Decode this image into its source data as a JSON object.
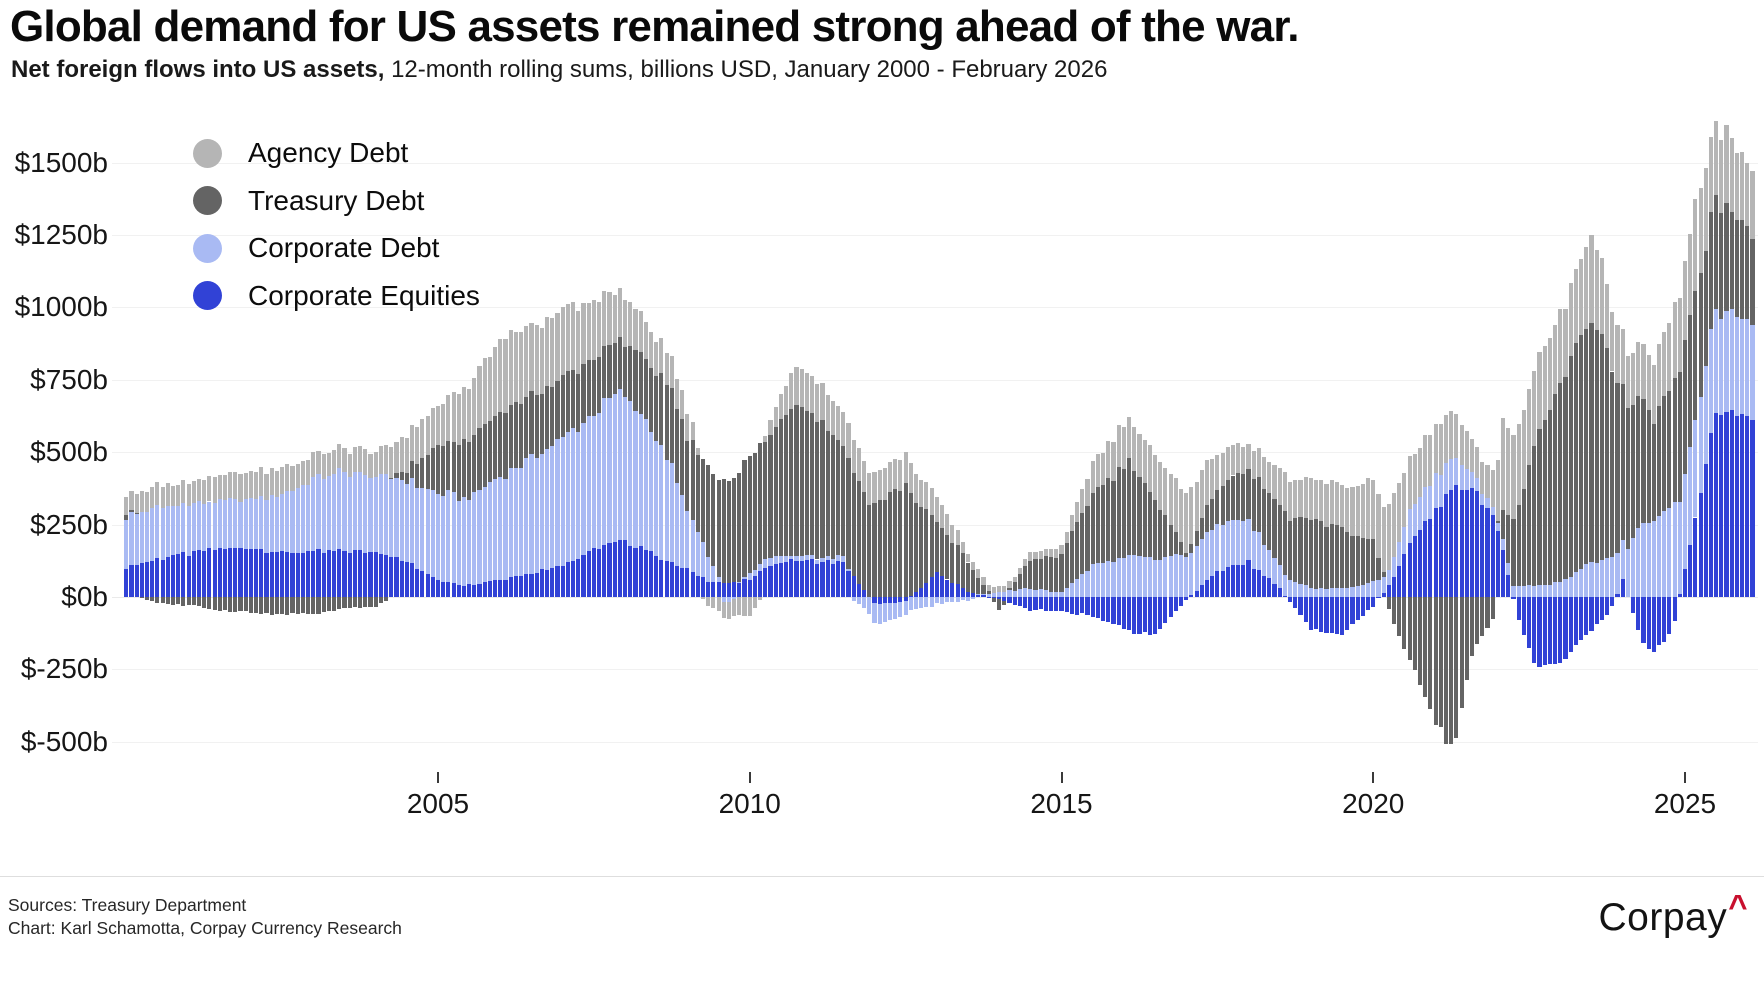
{
  "title": "Global demand for US assets remained strong ahead of the war.",
  "subtitle": {
    "bold": "Net foreign flows into US assets,",
    "rest": " 12-month rolling sums, billions USD, January 2000 - February 2026"
  },
  "legend": [
    {
      "label": "Agency Debt",
      "color": "#b5b5b5"
    },
    {
      "label": "Treasury Debt",
      "color": "#646464"
    },
    {
      "label": "Corporate Debt",
      "color": "#a9baf3"
    },
    {
      "label": "Corporate Equities",
      "color": "#3142d6"
    }
  ],
  "y_axis": {
    "ticks": [
      {
        "label": "$1500b",
        "value": 1500
      },
      {
        "label": "$1250b",
        "value": 1250
      },
      {
        "label": "$1000b",
        "value": 1000
      },
      {
        "label": "$750b",
        "value": 750
      },
      {
        "label": "$500b",
        "value": 500
      },
      {
        "label": "$250b",
        "value": 250
      },
      {
        "label": "$0b",
        "value": 0
      },
      {
        "label": "$-250b",
        "value": -250
      },
      {
        "label": "$-500b",
        "value": -500
      }
    ]
  },
  "x_axis": {
    "ticks": [
      {
        "label": "2005",
        "year": 2005
      },
      {
        "label": "2010",
        "year": 2010
      },
      {
        "label": "2015",
        "year": 2015
      },
      {
        "label": "2020",
        "year": 2020
      },
      {
        "label": "2025",
        "year": 2025
      }
    ]
  },
  "footer": {
    "sources": "Sources: Treasury Department",
    "credit": "Chart: Karl Schamotta, Corpay Currency Research"
  },
  "logo": {
    "text": "Corpay",
    "caret": "^"
  },
  "chart_data": {
    "type": "bar",
    "stacked": true,
    "title": "Global demand for US assets remained strong ahead of the war.",
    "unit": "billions USD, 12-month rolling sums",
    "x_range": [
      2000.0,
      2026.083
    ],
    "x_step_months": 1,
    "ylim": [
      -560,
      1650
    ],
    "grid": true,
    "legend_position": "top-left",
    "series": [
      {
        "name": "Corporate Equities",
        "color": "#3142d6",
        "keyframes": [
          [
            2000.0,
            105
          ],
          [
            2000.5,
            130
          ],
          [
            2001.0,
            150
          ],
          [
            2001.5,
            165
          ],
          [
            2002.0,
            170
          ],
          [
            2002.5,
            155
          ],
          [
            2003.0,
            155
          ],
          [
            2003.5,
            160
          ],
          [
            2004.0,
            160
          ],
          [
            2004.5,
            120
          ],
          [
            2005.0,
            60
          ],
          [
            2005.5,
            40
          ],
          [
            2006.0,
            60
          ],
          [
            2006.5,
            85
          ],
          [
            2007.0,
            110
          ],
          [
            2007.5,
            160
          ],
          [
            2007.9,
            195
          ],
          [
            2008.3,
            170
          ],
          [
            2008.7,
            120
          ],
          [
            2009.0,
            95
          ],
          [
            2009.3,
            60
          ],
          [
            2009.6,
            45
          ],
          [
            2010.0,
            60
          ],
          [
            2010.3,
            110
          ],
          [
            2010.7,
            125
          ],
          [
            2011.0,
            125
          ],
          [
            2011.5,
            118
          ],
          [
            2012.0,
            -25
          ],
          [
            2012.5,
            -15
          ],
          [
            2013.0,
            80
          ],
          [
            2013.5,
            22
          ],
          [
            2014.0,
            -10
          ],
          [
            2014.5,
            -45
          ],
          [
            2015.0,
            -50
          ],
          [
            2015.5,
            -65
          ],
          [
            2016.1,
            -120
          ],
          [
            2016.5,
            -130
          ],
          [
            2017.0,
            -10
          ],
          [
            2017.5,
            90
          ],
          [
            2018.0,
            120
          ],
          [
            2018.5,
            30
          ],
          [
            2019.0,
            -110
          ],
          [
            2019.5,
            -130
          ],
          [
            2020.0,
            -30
          ],
          [
            2020.3,
            55
          ],
          [
            2020.6,
            190
          ],
          [
            2021.0,
            300
          ],
          [
            2021.3,
            370
          ],
          [
            2021.6,
            385
          ],
          [
            2021.9,
            280
          ],
          [
            2022.1,
            150
          ],
          [
            2022.3,
            -60
          ],
          [
            2022.6,
            -240
          ],
          [
            2023.0,
            -230
          ],
          [
            2023.3,
            -160
          ],
          [
            2023.5,
            -115
          ],
          [
            2023.8,
            -50
          ],
          [
            2024.0,
            60
          ],
          [
            2024.3,
            -150
          ],
          [
            2024.5,
            -190
          ],
          [
            2024.8,
            -120
          ],
          [
            2025.0,
            100
          ],
          [
            2025.2,
            300
          ],
          [
            2025.5,
            650
          ],
          [
            2025.7,
            620
          ],
          [
            2026.0,
            630
          ],
          [
            2026.083,
            620
          ]
        ]
      },
      {
        "name": "Corporate Debt",
        "color": "#a9baf3",
        "keyframes": [
          [
            2000.0,
            175
          ],
          [
            2000.5,
            180
          ],
          [
            2001.0,
            170
          ],
          [
            2001.5,
            160
          ],
          [
            2002.0,
            170
          ],
          [
            2002.5,
            200
          ],
          [
            2003.0,
            250
          ],
          [
            2003.5,
            270
          ],
          [
            2004.0,
            260
          ],
          [
            2004.5,
            280
          ],
          [
            2005.0,
            300
          ],
          [
            2005.5,
            300
          ],
          [
            2006.0,
            360
          ],
          [
            2006.5,
            400
          ],
          [
            2007.0,
            440
          ],
          [
            2007.5,
            470
          ],
          [
            2007.9,
            510
          ],
          [
            2008.3,
            460
          ],
          [
            2008.7,
            350
          ],
          [
            2009.0,
            205
          ],
          [
            2009.3,
            100
          ],
          [
            2009.6,
            -25
          ],
          [
            2010.0,
            20
          ],
          [
            2010.3,
            30
          ],
          [
            2010.7,
            15
          ],
          [
            2011.0,
            15
          ],
          [
            2011.5,
            20
          ],
          [
            2012.0,
            -70
          ],
          [
            2012.5,
            -50
          ],
          [
            2013.0,
            -25
          ],
          [
            2013.5,
            -10
          ],
          [
            2014.0,
            15
          ],
          [
            2014.5,
            30
          ],
          [
            2015.0,
            15
          ],
          [
            2015.5,
            110
          ],
          [
            2016.1,
            140
          ],
          [
            2016.5,
            130
          ],
          [
            2017.0,
            145
          ],
          [
            2017.5,
            170
          ],
          [
            2018.0,
            145
          ],
          [
            2018.5,
            75
          ],
          [
            2019.0,
            30
          ],
          [
            2019.5,
            30
          ],
          [
            2020.0,
            50
          ],
          [
            2020.3,
            60
          ],
          [
            2020.6,
            115
          ],
          [
            2021.0,
            120
          ],
          [
            2021.3,
            100
          ],
          [
            2021.6,
            55
          ],
          [
            2021.9,
            30
          ],
          [
            2022.1,
            40
          ],
          [
            2022.3,
            40
          ],
          [
            2022.6,
            40
          ],
          [
            2023.0,
            50
          ],
          [
            2023.3,
            90
          ],
          [
            2023.5,
            120
          ],
          [
            2023.8,
            130
          ],
          [
            2024.0,
            140
          ],
          [
            2024.3,
            250
          ],
          [
            2024.5,
            270
          ],
          [
            2024.8,
            320
          ],
          [
            2025.0,
            330
          ],
          [
            2025.2,
            330
          ],
          [
            2025.5,
            350
          ],
          [
            2025.7,
            330
          ],
          [
            2026.0,
            345
          ],
          [
            2026.083,
            340
          ]
        ]
      },
      {
        "name": "Treasury Debt",
        "color": "#646464",
        "keyframes": [
          [
            2000.0,
            15
          ],
          [
            2000.5,
            -20
          ],
          [
            2001.0,
            -30
          ],
          [
            2001.5,
            -45
          ],
          [
            2002.0,
            -55
          ],
          [
            2002.5,
            -60
          ],
          [
            2003.0,
            -60
          ],
          [
            2003.5,
            -40
          ],
          [
            2004.0,
            -35
          ],
          [
            2004.5,
            40
          ],
          [
            2005.0,
            160
          ],
          [
            2005.5,
            200
          ],
          [
            2006.0,
            220
          ],
          [
            2006.5,
            215
          ],
          [
            2007.0,
            205
          ],
          [
            2007.5,
            190
          ],
          [
            2007.9,
            175
          ],
          [
            2008.3,
            210
          ],
          [
            2008.7,
            250
          ],
          [
            2009.0,
            250
          ],
          [
            2009.3,
            300
          ],
          [
            2009.6,
            360
          ],
          [
            2010.0,
            400
          ],
          [
            2010.3,
            410
          ],
          [
            2010.7,
            530
          ],
          [
            2011.0,
            510
          ],
          [
            2011.5,
            385
          ],
          [
            2012.0,
            320
          ],
          [
            2012.5,
            390
          ],
          [
            2013.0,
            175
          ],
          [
            2013.5,
            105
          ],
          [
            2014.0,
            -40
          ],
          [
            2014.5,
            100
          ],
          [
            2015.0,
            130
          ],
          [
            2015.5,
            250
          ],
          [
            2016.1,
            330
          ],
          [
            2016.5,
            200
          ],
          [
            2017.0,
            15
          ],
          [
            2017.5,
            125
          ],
          [
            2018.0,
            175
          ],
          [
            2018.5,
            205
          ],
          [
            2019.0,
            235
          ],
          [
            2019.5,
            205
          ],
          [
            2020.0,
            140
          ],
          [
            2020.3,
            -80
          ],
          [
            2020.6,
            -230
          ],
          [
            2021.0,
            -430
          ],
          [
            2021.3,
            -540
          ],
          [
            2021.6,
            -180
          ],
          [
            2021.9,
            -95
          ],
          [
            2022.1,
            115
          ],
          [
            2022.3,
            260
          ],
          [
            2022.6,
            480
          ],
          [
            2023.0,
            680
          ],
          [
            2023.3,
            780
          ],
          [
            2023.5,
            850
          ],
          [
            2023.8,
            700
          ],
          [
            2024.0,
            520
          ],
          [
            2024.3,
            420
          ],
          [
            2024.5,
            350
          ],
          [
            2024.8,
            420
          ],
          [
            2025.0,
            450
          ],
          [
            2025.2,
            420
          ],
          [
            2025.5,
            380
          ],
          [
            2025.7,
            350
          ],
          [
            2026.0,
            320
          ],
          [
            2026.083,
            310
          ]
        ]
      },
      {
        "name": "Agency Debt",
        "color": "#b5b5b5",
        "keyframes": [
          [
            2000.0,
            60
          ],
          [
            2000.5,
            75
          ],
          [
            2001.0,
            75
          ],
          [
            2001.5,
            90
          ],
          [
            2002.0,
            95
          ],
          [
            2002.5,
            90
          ],
          [
            2003.0,
            80
          ],
          [
            2003.5,
            85
          ],
          [
            2004.0,
            90
          ],
          [
            2004.5,
            120
          ],
          [
            2005.0,
            140
          ],
          [
            2005.5,
            185
          ],
          [
            2006.0,
            250
          ],
          [
            2006.5,
            240
          ],
          [
            2007.0,
            235
          ],
          [
            2007.5,
            200
          ],
          [
            2007.9,
            165
          ],
          [
            2008.3,
            140
          ],
          [
            2008.7,
            110
          ],
          [
            2009.0,
            95
          ],
          [
            2009.3,
            -30
          ],
          [
            2009.6,
            -60
          ],
          [
            2010.0,
            -65
          ],
          [
            2010.3,
            40
          ],
          [
            2010.7,
            130
          ],
          [
            2011.0,
            125
          ],
          [
            2011.5,
            118
          ],
          [
            2012.0,
            105
          ],
          [
            2012.5,
            103
          ],
          [
            2013.0,
            90
          ],
          [
            2013.5,
            30
          ],
          [
            2014.0,
            20
          ],
          [
            2014.5,
            25
          ],
          [
            2015.0,
            30
          ],
          [
            2015.5,
            105
          ],
          [
            2016.1,
            150
          ],
          [
            2016.5,
            155
          ],
          [
            2017.0,
            200
          ],
          [
            2017.5,
            125
          ],
          [
            2018.0,
            90
          ],
          [
            2018.5,
            125
          ],
          [
            2019.0,
            140
          ],
          [
            2019.5,
            145
          ],
          [
            2020.0,
            215
          ],
          [
            2020.3,
            230
          ],
          [
            2020.6,
            175
          ],
          [
            2021.0,
            175
          ],
          [
            2021.3,
            160
          ],
          [
            2021.6,
            115
          ],
          [
            2021.9,
            115
          ],
          [
            2022.1,
            320
          ],
          [
            2022.3,
            290
          ],
          [
            2022.6,
            260
          ],
          [
            2023.0,
            240
          ],
          [
            2023.3,
            260
          ],
          [
            2023.5,
            310
          ],
          [
            2023.8,
            210
          ],
          [
            2024.0,
            190
          ],
          [
            2024.3,
            180
          ],
          [
            2024.5,
            200
          ],
          [
            2024.8,
            250
          ],
          [
            2025.0,
            280
          ],
          [
            2025.2,
            310
          ],
          [
            2025.5,
            250
          ],
          [
            2025.7,
            260
          ],
          [
            2026.0,
            215
          ],
          [
            2026.083,
            230
          ]
        ]
      }
    ]
  }
}
